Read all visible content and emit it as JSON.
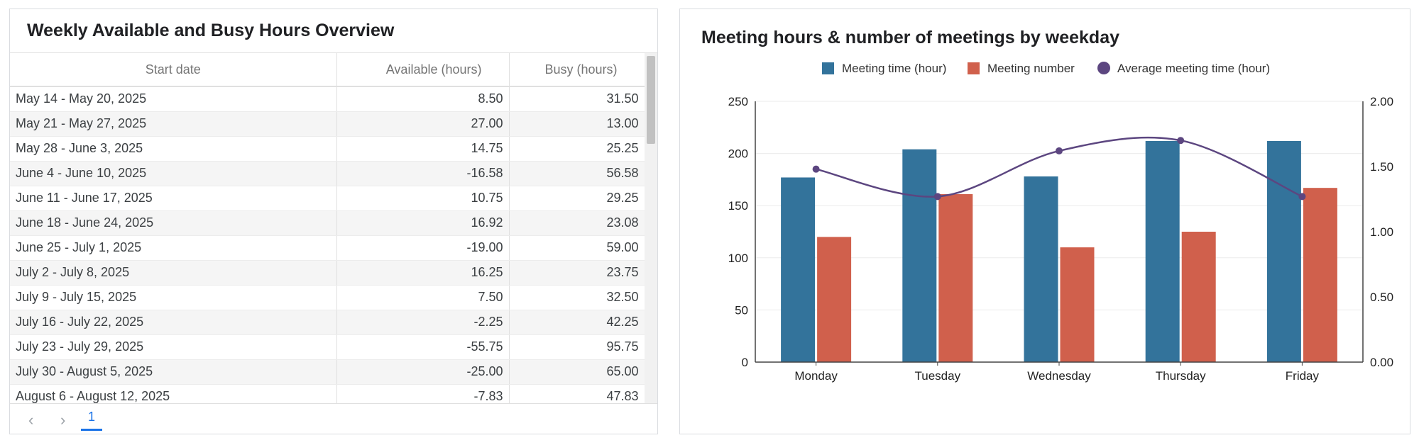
{
  "table": {
    "title": "Weekly Available and Busy Hours Overview",
    "columns": [
      "Start date",
      "Available (hours)",
      "Busy (hours)"
    ],
    "rows": [
      [
        "May 14 - May 20, 2025",
        "8.50",
        "31.50"
      ],
      [
        "May 21 - May 27, 2025",
        "27.00",
        "13.00"
      ],
      [
        "May 28 - June 3, 2025",
        "14.75",
        "25.25"
      ],
      [
        "June 4 - June 10, 2025",
        "-16.58",
        "56.58"
      ],
      [
        "June 11 - June 17, 2025",
        "10.75",
        "29.25"
      ],
      [
        "June 18 - June 24, 2025",
        "16.92",
        "23.08"
      ],
      [
        "June 25 - July 1, 2025",
        "-19.00",
        "59.00"
      ],
      [
        "July 2 - July 8, 2025",
        "16.25",
        "23.75"
      ],
      [
        "July 9 - July 15, 2025",
        "7.50",
        "32.50"
      ],
      [
        "July 16 - July 22, 2025",
        "-2.25",
        "42.25"
      ],
      [
        "July 23 - July 29, 2025",
        "-55.75",
        "95.75"
      ],
      [
        "July 30 - August 5, 2025",
        "-25.00",
        "65.00"
      ],
      [
        "August 6 - August 12, 2025",
        "-7.83",
        "47.83"
      ]
    ],
    "pager": {
      "prev": "‹",
      "next": "›",
      "page": "1"
    }
  },
  "chart_data": {
    "type": "bar",
    "title": "Meeting hours & number of meetings by weekday",
    "categories": [
      "Monday",
      "Tuesday",
      "Wednesday",
      "Thursday",
      "Friday"
    ],
    "series": [
      {
        "name": "Meeting time (hour)",
        "type": "bar",
        "axis": "left",
        "color": "#33739b",
        "values": [
          177,
          204,
          178,
          212,
          212
        ]
      },
      {
        "name": "Meeting number",
        "type": "bar",
        "axis": "left",
        "color": "#d0604c",
        "values": [
          120,
          161,
          110,
          125,
          167
        ]
      },
      {
        "name": "Average meeting time (hour)",
        "type": "line",
        "axis": "right",
        "color": "#5c4680",
        "values": [
          1.48,
          1.27,
          1.62,
          1.7,
          1.27
        ]
      }
    ],
    "y_left": {
      "min": 0,
      "max": 250,
      "ticks": [
        "0",
        "50",
        "100",
        "150",
        "200",
        "250"
      ]
    },
    "y_right": {
      "min": 0,
      "max": 2,
      "ticks": [
        "0.00",
        "0.50",
        "1.00",
        "1.50",
        "2.00"
      ]
    },
    "legend_position": "top",
    "grid": true
  }
}
